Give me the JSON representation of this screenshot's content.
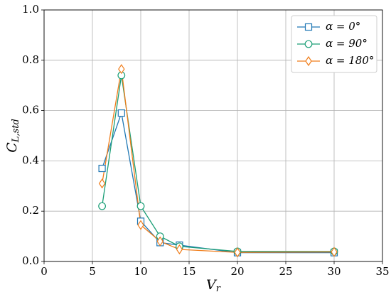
{
  "chart_data": {
    "type": "line",
    "xlabel": {
      "main": "V",
      "sub": "r"
    },
    "ylabel": {
      "main": "C",
      "sub": "L,std"
    },
    "x": [
      6,
      8,
      10,
      12,
      14,
      20,
      30
    ],
    "series": [
      {
        "name": "α = 0°",
        "color": "#1f77b4",
        "marker": "square",
        "values": [
          0.37,
          0.59,
          0.16,
          0.075,
          0.065,
          0.035,
          0.035
        ]
      },
      {
        "name": "α = 90°",
        "color": "#1a9e76",
        "marker": "circle",
        "values": [
          0.22,
          0.74,
          0.22,
          0.1,
          0.06,
          0.04,
          0.04
        ]
      },
      {
        "name": "α = 180°",
        "color": "#f07d1a",
        "marker": "diamond",
        "values": [
          0.31,
          0.765,
          0.145,
          0.08,
          0.048,
          0.036,
          0.038
        ]
      }
    ],
    "xlim": [
      0,
      35
    ],
    "xticks": [
      0,
      5,
      10,
      15,
      20,
      25,
      30,
      35
    ],
    "ylim": [
      0,
      1
    ],
    "yticks": [
      {
        "value": 0,
        "label": "0.0"
      },
      0.2,
      0.4,
      0.6,
      0.8,
      {
        "value": 1,
        "label": "1.0"
      }
    ],
    "grid": true,
    "legend": "upper right"
  }
}
